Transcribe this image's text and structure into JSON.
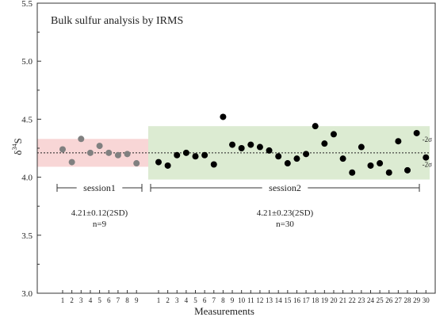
{
  "chart_data": {
    "type": "scatter",
    "title": "Bulk sulfur analysis by IRMS",
    "xlabel": "Measurements",
    "ylabel": "δ34S",
    "ylabel_base": "δ",
    "ylabel_sup": "34",
    "ylabel_tail": "S",
    "ylim": [
      3.0,
      5.5
    ],
    "yticks": [
      "3.0",
      "3.5",
      "4.0",
      "4.5",
      "5.0",
      "5.5"
    ],
    "mean_line": 4.21,
    "sessions": [
      {
        "label": "session1",
        "stat": "4.21±0.12(2SD)",
        "n": "n=9",
        "band": [
          4.09,
          4.33
        ],
        "band_color": "#f8d6d6",
        "point_color": "#808080",
        "x_labels": [
          "1",
          "2",
          "3",
          "4",
          "5",
          "6",
          "7",
          "8",
          "9"
        ],
        "values": [
          4.24,
          4.13,
          4.33,
          4.21,
          4.27,
          4.21,
          4.19,
          4.2,
          4.12
        ]
      },
      {
        "label": "session2",
        "stat": "4.21±0.23(2SD)",
        "n": "n=30",
        "band": [
          3.98,
          4.44
        ],
        "band_color": "#dcebd2",
        "point_color": "#000000",
        "x_labels": [
          "1",
          "2",
          "3",
          "4",
          "5",
          "6",
          "7",
          "8",
          "9",
          "10",
          "11",
          "12",
          "13",
          "14",
          "15",
          "16",
          "17",
          "18",
          "19",
          "20",
          "21",
          "22",
          "23",
          "24",
          "25",
          "26",
          "27",
          "28",
          "29",
          "30"
        ],
        "values": [
          4.13,
          4.1,
          4.19,
          4.21,
          4.18,
          4.19,
          4.11,
          4.52,
          4.28,
          4.25,
          4.28,
          4.26,
          4.23,
          4.18,
          4.12,
          4.16,
          4.2,
          4.44,
          4.29,
          4.37,
          4.16,
          4.04,
          4.26,
          4.1,
          4.12,
          4.04,
          4.31,
          4.06,
          4.38,
          4.17
        ]
      }
    ],
    "band_labels": [
      "-2σ",
      "-2σ"
    ]
  }
}
